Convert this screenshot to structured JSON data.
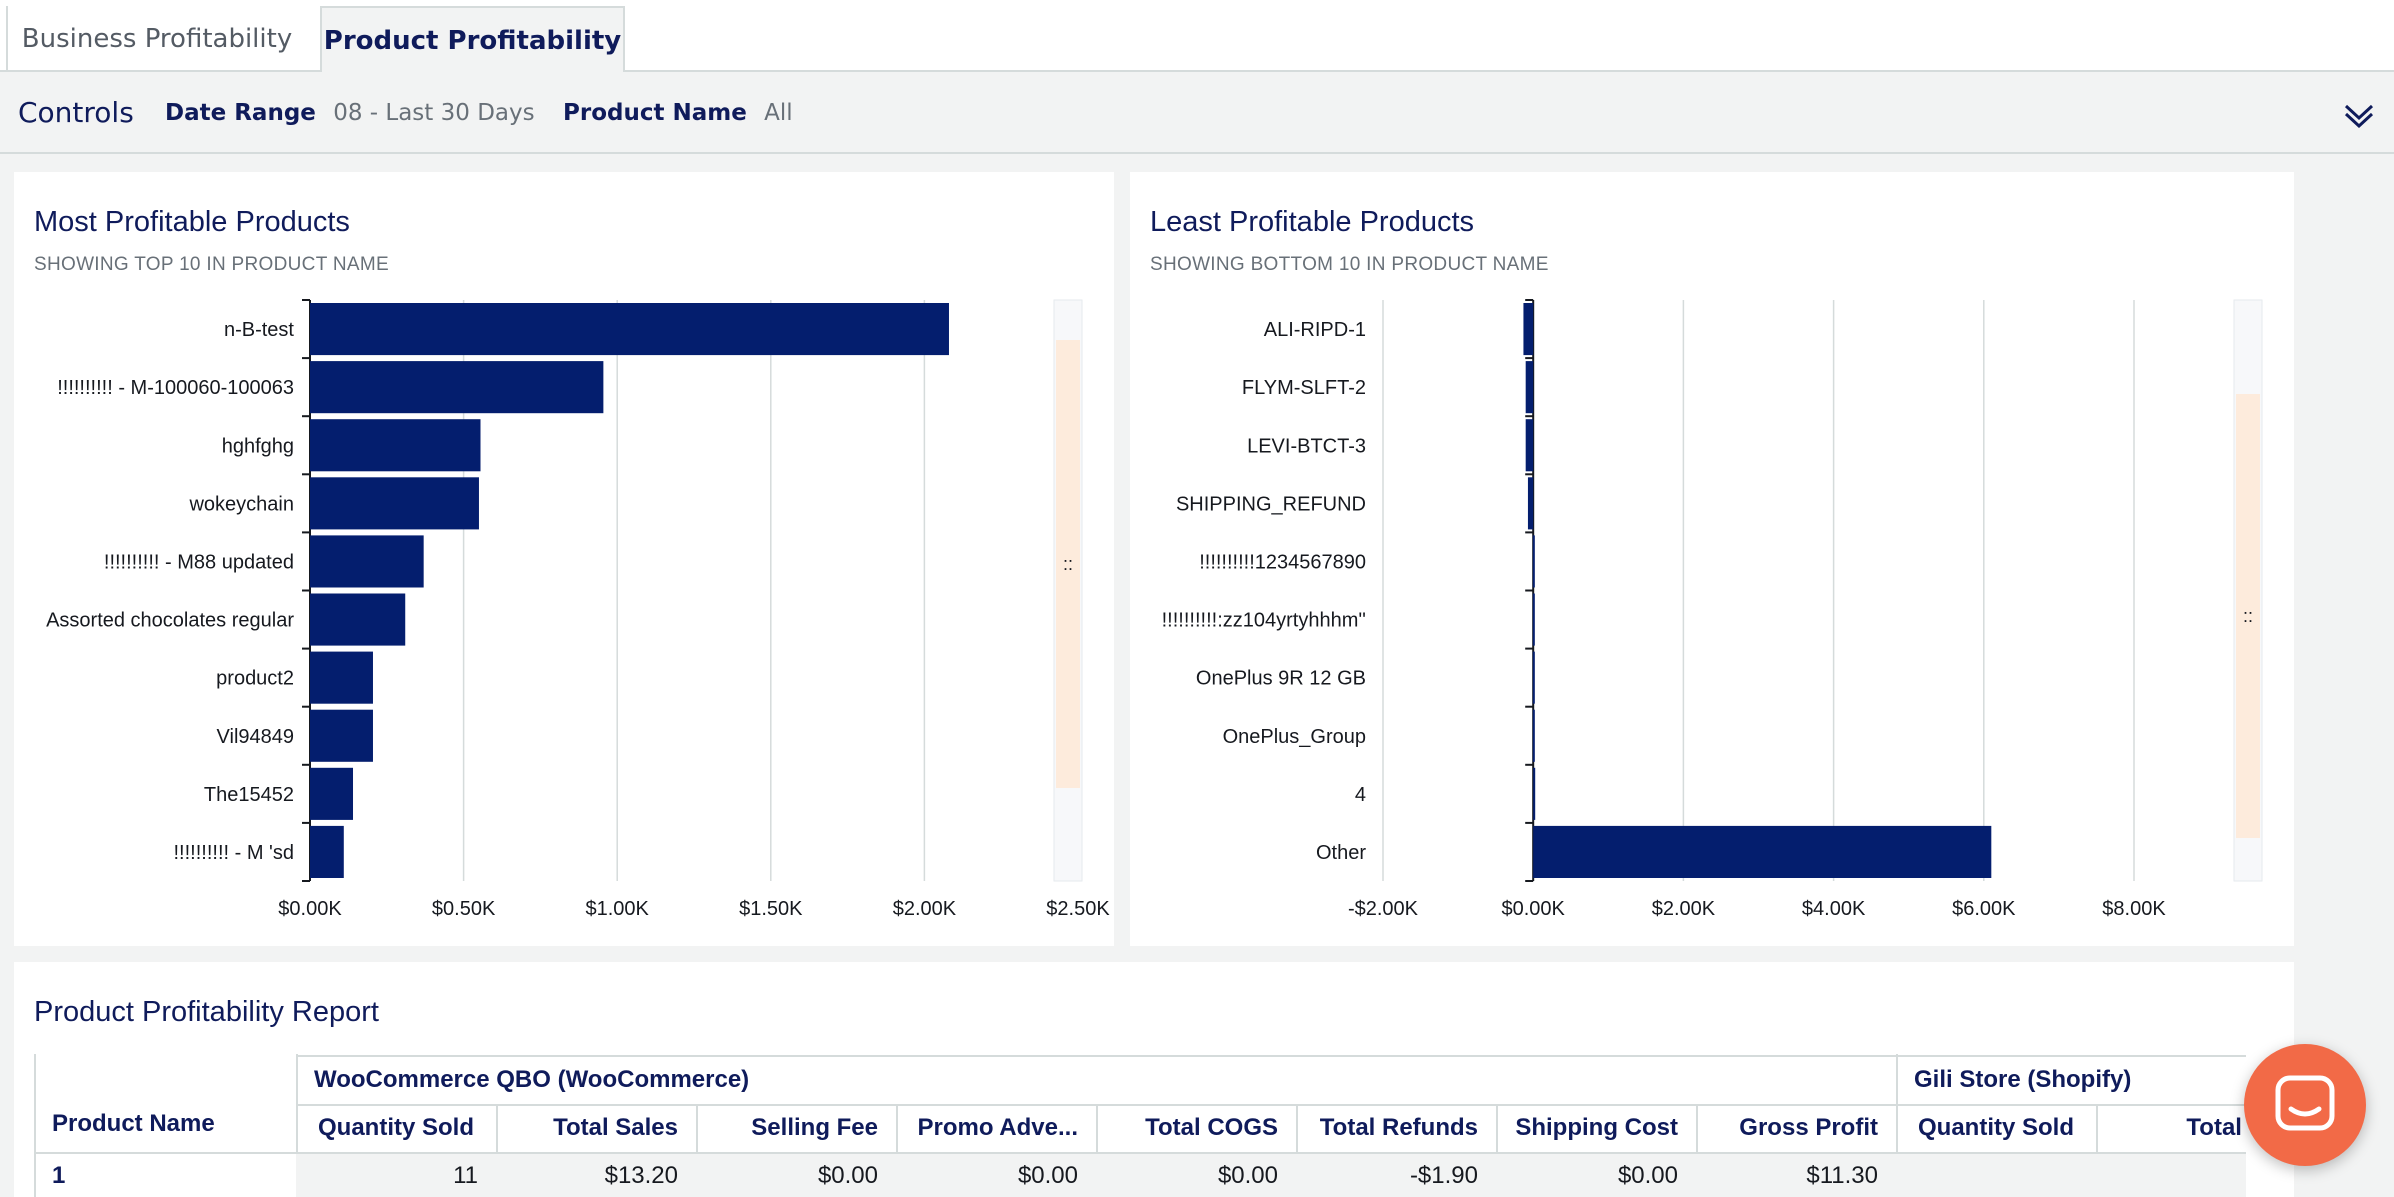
{
  "tabs": [
    {
      "label": "Business Profitability",
      "active": false
    },
    {
      "label": "Product Profitability",
      "active": true
    }
  ],
  "controls": {
    "title": "Controls",
    "date_range": {
      "label": "Date Range",
      "value": "08 - Last 30 Days"
    },
    "product_name": {
      "label": "Product Name",
      "value": "All"
    }
  },
  "most_profitable": {
    "title": "Most Profitable Products",
    "subtitle": "SHOWING TOP 10 IN PRODUCT NAME"
  },
  "least_profitable": {
    "title": "Least Profitable Products",
    "subtitle": "SHOWING BOTTOM 10 IN PRODUCT NAME"
  },
  "chart_data": [
    {
      "type": "bar",
      "orientation": "horizontal",
      "title": "Most Profitable Products",
      "subtitle": "SHOWING TOP 10 IN PRODUCT NAME",
      "categories": [
        "n-B-test",
        "!!!!!!!!!! - M-100060-100063",
        "hghfghg",
        "wokeychain",
        "!!!!!!!!!! - M88 updated",
        "Assorted chocolates regular",
        "product2",
        "Vil94849",
        "The15452",
        "!!!!!!!!!! - M 'sd"
      ],
      "values": [
        2080,
        955,
        555,
        550,
        370,
        310,
        205,
        205,
        140,
        110
      ],
      "xlim": [
        0,
        2500
      ],
      "ticks": [
        0,
        500,
        1000,
        1500,
        2000,
        2500
      ],
      "tick_labels": [
        "$0.00K",
        "$0.50K",
        "$1.00K",
        "$1.50K",
        "$2.00K",
        "$2.50K"
      ],
      "color": "#041e6e",
      "grid": true
    },
    {
      "type": "bar",
      "orientation": "horizontal",
      "title": "Least Profitable Products",
      "subtitle": "SHOWING BOTTOM 10 IN PRODUCT NAME",
      "categories": [
        "ALI-RIPD-1",
        "FLYM-SLFT-2",
        "LEVI-BTCT-3",
        "SHIPPING_REFUND",
        "!!!!!!!!!!1234567890",
        "!!!!!!!!!!:zz104yrtyhhhm''",
        "OnePlus 9R 12 GB",
        "OnePlus_Group",
        "4",
        "Other"
      ],
      "values": [
        -130,
        -100,
        -100,
        -70,
        -5,
        -5,
        -5,
        -5,
        10,
        6100
      ],
      "xlim": [
        -2000,
        8000
      ],
      "ticks": [
        -2000,
        0,
        2000,
        4000,
        6000,
        8000
      ],
      "tick_labels": [
        "-$2.00K",
        "$0.00K",
        "$2.00K",
        "$4.00K",
        "$6.00K",
        "$8.00K"
      ],
      "color": "#041e6e",
      "grid": true
    }
  ],
  "report": {
    "title": "Product Profitability Report",
    "row_header": "Product Name",
    "groups": [
      {
        "label": "WooCommerce QBO (WooCommerce)"
      },
      {
        "label": "Gili Store (Shopify)"
      }
    ],
    "columns": [
      "Quantity Sold",
      "Total Sales",
      "Selling Fee",
      "Promo Adve...",
      "Total COGS",
      "Total Refunds",
      "Shipping Cost",
      "Gross Profit",
      "Quantity Sold",
      "Total Sa"
    ],
    "rows": [
      {
        "name": "1",
        "values": [
          "11",
          "$13.20",
          "$0.00",
          "$0.00",
          "$0.00",
          "-$1.90",
          "$0.00",
          "$11.30",
          "",
          ""
        ]
      }
    ]
  }
}
